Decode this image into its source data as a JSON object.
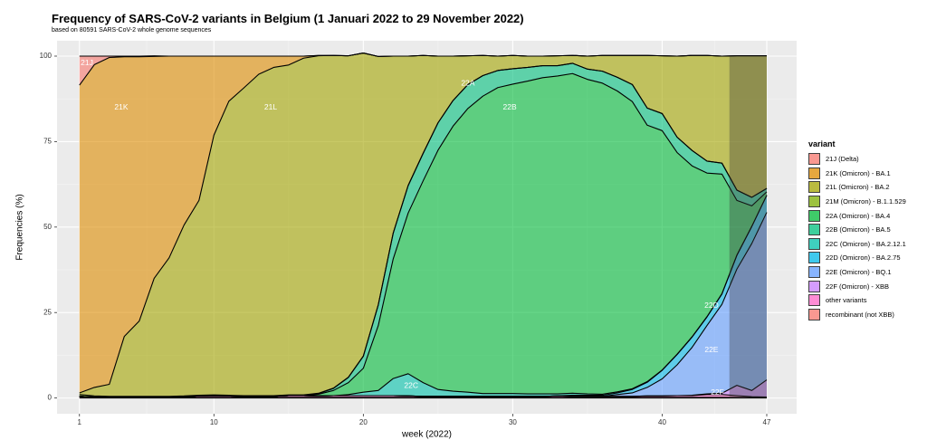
{
  "chart_data": {
    "type": "area",
    "title": "Frequency of SARS-CoV-2 variants in Belgium (1 Januari 2022 to 29 November 2022)",
    "subtitle": "based on 80591 SARS-CoV-2 whole genome sequences",
    "xlabel": "week (2022)",
    "ylabel": "Frequencies (%)",
    "xlim": [
      -0.5,
      49
    ],
    "ylim": [
      -4.6,
      104.5
    ],
    "x_ticks": [
      1,
      10,
      20,
      30,
      40,
      47
    ],
    "y_ticks": [
      0,
      25,
      50,
      75,
      100
    ],
    "grid": true,
    "legend_title": "variant",
    "legend_position": "right",
    "shaded_region_x": [
      44.5,
      47
    ],
    "x": [
      1,
      2,
      3,
      4,
      5,
      6,
      7,
      8,
      9,
      10,
      11,
      12,
      13,
      14,
      15,
      16,
      17,
      18,
      19,
      20,
      21,
      22,
      23,
      24,
      25,
      26,
      27,
      28,
      29,
      30,
      31,
      32,
      33,
      34,
      35,
      36,
      37,
      38,
      39,
      40,
      41,
      42,
      43,
      44,
      45,
      46,
      47
    ],
    "series": [
      {
        "name": "recombinant (not XBB)",
        "color": "#F8766D",
        "values": [
          0.3,
          0.2,
          0.2,
          0.2,
          0.2,
          0.2,
          0.2,
          0.2,
          0.2,
          0.2,
          0.2,
          0.2,
          0.2,
          0.2,
          0.2,
          0.2,
          0.2,
          0.2,
          0.2,
          0.2,
          0.2,
          0.2,
          0.2,
          0.2,
          0.2,
          0.2,
          0.2,
          0.2,
          0.2,
          0.2,
          0.2,
          0.2,
          0.2,
          0.2,
          0.2,
          0.2,
          0.2,
          0.2,
          0.2,
          0.2,
          0.2,
          0.2,
          0.2,
          0.2,
          0.2,
          0.2,
          0.2
        ]
      },
      {
        "name": "other variants",
        "color": "#FF66C8",
        "values": [
          0.2,
          0.1,
          0.1,
          0.1,
          0.1,
          0.1,
          0.1,
          0.2,
          0.4,
          0.5,
          0.4,
          0.3,
          0.3,
          0.3,
          0.5,
          0.5,
          0.4,
          0.5,
          0.5,
          0.5,
          0.5,
          0.5,
          0.4,
          0.3,
          0.3,
          0.3,
          0.3,
          0.3,
          0.3,
          0.3,
          0.3,
          0.3,
          0.4,
          0.3,
          0.3,
          0.3,
          0.3,
          0.3,
          0.4,
          0.4,
          0.5,
          0.5,
          0.8,
          0.8,
          0.5,
          0.2,
          0.1
        ]
      },
      {
        "name": "22F (Omicron) - XBB",
        "color": "#C77CFF",
        "values": [
          0,
          0,
          0,
          0,
          0,
          0,
          0,
          0,
          0,
          0,
          0,
          0,
          0,
          0,
          0,
          0,
          0,
          0,
          0,
          0,
          0,
          0,
          0,
          0,
          0,
          0,
          0,
          0,
          0,
          0,
          0,
          0,
          0,
          0,
          0,
          0,
          0,
          0,
          0,
          0,
          0,
          0.1,
          0.2,
          0.4,
          3.0,
          1.8,
          5.0
        ]
      },
      {
        "name": "22E (Omicron) - BQ.1",
        "color": "#619CFF",
        "values": [
          0,
          0,
          0,
          0,
          0,
          0,
          0,
          0,
          0,
          0,
          0,
          0,
          0,
          0,
          0,
          0,
          0,
          0,
          0,
          0,
          0,
          0,
          0,
          0,
          0,
          0,
          0,
          0,
          0,
          0,
          0,
          0,
          0,
          0,
          0,
          0,
          0.5,
          1.0,
          2.5,
          5.0,
          9.0,
          14.0,
          20.0,
          26.0,
          34.0,
          43.0,
          49.0
        ]
      },
      {
        "name": "22D (Omicron) - BA.2.75",
        "color": "#00B8E7",
        "values": [
          0,
          0,
          0,
          0,
          0,
          0,
          0,
          0,
          0,
          0,
          0,
          0,
          0,
          0,
          0,
          0,
          0,
          0,
          0,
          0,
          0,
          0,
          0,
          0,
          0,
          0,
          0,
          0,
          0,
          0,
          0,
          0,
          0,
          0.3,
          0.3,
          0.3,
          0.5,
          1.0,
          1.5,
          2.5,
          3.0,
          3.0,
          2.5,
          3.0,
          4.0,
          5.0,
          5.0
        ]
      },
      {
        "name": "22C (Omicron) - BA.2.12.1",
        "color": "#00C1AA",
        "values": [
          0,
          0,
          0,
          0,
          0,
          0,
          0,
          0,
          0,
          0,
          0,
          0,
          0,
          0,
          0,
          0,
          0,
          0,
          0.3,
          1.0,
          1.5,
          5.0,
          6.5,
          4.0,
          2.0,
          1.5,
          1.2,
          0.8,
          0.8,
          0.8,
          0.7,
          0.7,
          0.6,
          0.6,
          0.4,
          0.3,
          0.3,
          0.2,
          0.2,
          0.1,
          0.1,
          0.1,
          0.1,
          0.1,
          0.1,
          0,
          0
        ]
      },
      {
        "name": "22B (Omicron) - BA.5",
        "color": "#00BA38",
        "values": [
          0,
          0,
          0,
          0,
          0,
          0,
          0,
          0,
          0,
          0,
          0,
          0,
          0,
          0,
          0,
          0,
          0.5,
          1.5,
          3.5,
          7.0,
          19.0,
          35.0,
          47.0,
          59.0,
          70.0,
          77.5,
          83.0,
          87.0,
          89.5,
          90.5,
          91.5,
          92.5,
          93.0,
          93.5,
          92.0,
          91.0,
          88.0,
          84.0,
          75.0,
          70.0,
          59.0,
          50.0,
          42.0,
          35.0,
          16.0,
          6.0,
          1.0
        ]
      },
      {
        "name": "22A (Omicron) - BA.4",
        "color": "#00BF7D",
        "values": [
          0,
          0,
          0,
          0,
          0,
          0,
          0,
          0,
          0,
          0,
          0,
          0,
          0,
          0,
          0,
          0,
          0.2,
          0.6,
          1.5,
          3.5,
          6.0,
          7.5,
          8.0,
          8.0,
          8.0,
          7.5,
          7.0,
          6.0,
          5.0,
          4.5,
          4.0,
          3.5,
          3.0,
          3.0,
          3.0,
          3.5,
          4.0,
          5.0,
          5.0,
          5.0,
          4.5,
          4.5,
          3.5,
          3.2,
          3.0,
          2.5,
          1.0
        ]
      },
      {
        "name": "21M (Omicron) - B.1.1.529",
        "color": "#7CAE00",
        "values": [
          0.5,
          0.3,
          0.2,
          0.2,
          0.2,
          0.2,
          0.2,
          0.2,
          0.2,
          0.2,
          0.2,
          0.2,
          0.2,
          0.2,
          0.2,
          0.2,
          0.1,
          0.1,
          0.1,
          0.1,
          0.1,
          0.1,
          0.1,
          0.1,
          0,
          0,
          0,
          0,
          0,
          0,
          0,
          0,
          0,
          0,
          0,
          0,
          0,
          0,
          0,
          0,
          0,
          0,
          0,
          0,
          0,
          0,
          0
        ]
      },
      {
        "name": "21L (Omicron) - BA.2",
        "color": "#A3A500",
        "values": [
          0.5,
          2.5,
          3.5,
          17.5,
          22.0,
          34.5,
          40.5,
          50.0,
          57.0,
          76.0,
          86.0,
          90.0,
          94.0,
          96.0,
          96.5,
          98.5,
          98.7,
          97.3,
          94.0,
          88.6,
          72.6,
          51.7,
          37.8,
          28.6,
          19.5,
          13.0,
          8.4,
          5.9,
          4.2,
          3.9,
          3.3,
          2.8,
          2.9,
          2.3,
          3.8,
          4.6,
          6.4,
          8.5,
          15.4,
          16.9,
          23.7,
          27.8,
          30.9,
          31.3,
          39.3,
          41.4,
          38.8
        ]
      },
      {
        "name": "21K (Omicron) - BA.1",
        "color": "#DE8C00",
        "values": [
          90.0,
          94.4,
          95.6,
          81.8,
          77.3,
          64.9,
          59.0,
          49.4,
          42.2,
          23.1,
          13.2,
          9.3,
          5.3,
          3.3,
          2.6,
          0.6,
          0.1,
          0,
          0,
          0,
          0,
          0,
          0,
          0,
          0,
          0,
          0,
          0,
          0,
          0,
          0,
          0,
          0,
          0,
          0,
          0,
          0,
          0,
          0,
          0,
          0,
          0,
          0,
          0,
          0,
          0,
          0
        ]
      },
      {
        "name": "21J (Delta)",
        "color": "#F8766D",
        "values": [
          8.5,
          2.5,
          0.4,
          0.2,
          0.2,
          0.2,
          0,
          0,
          0,
          0,
          0,
          0,
          0,
          0,
          0,
          0,
          0,
          0,
          0,
          0,
          0,
          0,
          0,
          0,
          0,
          0,
          0,
          0,
          0,
          0,
          0,
          0,
          0,
          0,
          0,
          0,
          0,
          0,
          0,
          0,
          0,
          0,
          0,
          0,
          0,
          0,
          0
        ]
      }
    ],
    "legend_order": [
      "21J (Delta)",
      "21K (Omicron) - BA.1",
      "21L (Omicron) - BA.2",
      "21M (Omicron) - B.1.1.529",
      "22A (Omicron) - BA.4",
      "22B (Omicron) - BA.5",
      "22C (Omicron) - BA.2.12.1",
      "22D (Omicron) - BA.2.75",
      "22E (Omicron) - BQ.1",
      "22F (Omicron) - XBB",
      "other variants",
      "recombinant (not XBB)"
    ],
    "legend_colors": [
      "#F8766D",
      "#DE8C00",
      "#A3A500",
      "#7CAE00",
      "#00BA38",
      "#00BF7D",
      "#00C1AA",
      "#00B8E7",
      "#619CFF",
      "#C77CFF",
      "#FF66C8",
      "#F8766D"
    ],
    "annotations": [
      {
        "text": "21J",
        "x": 1.5,
        "y": 98
      },
      {
        "text": "21K",
        "x": 3.8,
        "y": 85
      },
      {
        "text": "21L",
        "x": 13.8,
        "y": 85
      },
      {
        "text": "22A",
        "x": 27.0,
        "y": 92
      },
      {
        "text": "22B",
        "x": 29.8,
        "y": 85
      },
      {
        "text": "22C",
        "x": 23.2,
        "y": 3.5
      },
      {
        "text": "22D",
        "x": 43.3,
        "y": 27
      },
      {
        "text": "22E",
        "x": 43.3,
        "y": 14
      },
      {
        "text": "22F",
        "x": 43.7,
        "y": 1.5
      }
    ]
  }
}
